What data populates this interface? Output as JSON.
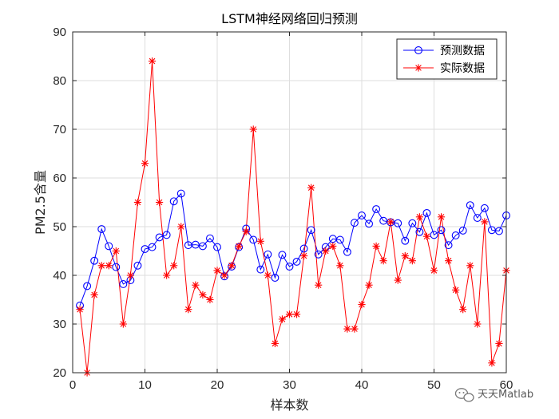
{
  "chart_data": {
    "type": "line",
    "title": "LSTM神经网络回归预测",
    "xlabel": "样本数",
    "ylabel": "PM2.5含量",
    "xlim": [
      0,
      60
    ],
    "ylim": [
      20,
      90
    ],
    "xticks": [
      0,
      10,
      20,
      30,
      40,
      50,
      60
    ],
    "yticks": [
      20,
      30,
      40,
      50,
      60,
      70,
      80,
      90
    ],
    "grid": true,
    "legend_position": "top-right",
    "x": [
      1,
      2,
      3,
      4,
      5,
      6,
      7,
      8,
      9,
      10,
      11,
      12,
      13,
      14,
      15,
      16,
      17,
      18,
      19,
      20,
      21,
      22,
      23,
      24,
      25,
      26,
      27,
      28,
      29,
      30,
      31,
      32,
      33,
      34,
      35,
      36,
      37,
      38,
      39,
      40,
      41,
      42,
      43,
      44,
      45,
      46,
      47,
      48,
      49,
      50,
      51,
      52,
      53,
      54,
      55,
      56,
      57,
      58,
      59,
      60
    ],
    "series": [
      {
        "name": "预测数据",
        "color": "#0000ff",
        "marker": "circle",
        "values": [
          33.8,
          37.8,
          43.0,
          49.5,
          46.0,
          41.7,
          38.2,
          39.0,
          42.0,
          45.4,
          45.8,
          47.8,
          48.3,
          55.2,
          56.8,
          46.2,
          46.3,
          46.0,
          47.6,
          45.8,
          39.8,
          41.8,
          45.8,
          49.6,
          47.3,
          41.2,
          44.3,
          39.5,
          44.2,
          41.8,
          42.8,
          45.5,
          49.3,
          44.3,
          45.8,
          47.5,
          47.3,
          44.8,
          50.8,
          52.3,
          50.6,
          53.6,
          51.2,
          50.9,
          50.7,
          47.1,
          50.7,
          48.9,
          52.8,
          48.3,
          49.3,
          46.2,
          48.2,
          49.2,
          54.4,
          51.8,
          53.8,
          49.3,
          49.1,
          52.3
        ]
      },
      {
        "name": "实际数据",
        "color": "#ff0000",
        "marker": "star",
        "values": [
          33,
          20,
          36,
          42,
          42,
          45,
          30,
          40,
          55,
          63,
          84,
          55,
          40,
          42,
          50,
          33,
          38,
          36,
          35,
          41,
          40,
          42,
          46,
          49,
          70,
          47,
          40,
          26,
          31,
          32,
          32,
          44,
          58,
          38,
          45,
          46,
          42,
          29,
          29,
          34,
          38,
          46,
          43,
          51,
          39,
          44,
          43,
          52,
          48,
          41,
          52,
          43,
          37,
          33,
          42,
          30,
          51,
          22,
          26,
          41
        ]
      }
    ]
  },
  "watermark": {
    "label": "天天Matlab",
    "icon": "wechat-bubble-icon"
  }
}
